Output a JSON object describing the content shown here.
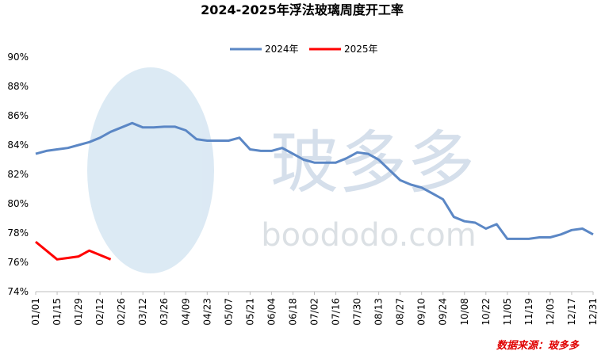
{
  "chart_data": {
    "type": "line",
    "title": "2024-2025年浮法玻璃周度开工率",
    "watermark": "玻多多",
    "watermark_url": "boododo.com",
    "source": "数据来源：玻多多",
    "categories": [
      "01/01",
      null,
      "01/15",
      null,
      "01/29",
      null,
      "02/12",
      null,
      "02/26",
      null,
      "03/12",
      null,
      "03/26",
      null,
      "04/09",
      null,
      "04/23",
      null,
      "05/07",
      null,
      "05/21",
      null,
      "06/04",
      null,
      "06/18",
      null,
      "07/02",
      null,
      "07/16",
      null,
      "07/30",
      null,
      "08/13",
      null,
      "08/27",
      null,
      "09/10",
      null,
      "09/24",
      null,
      "10/08",
      null,
      "10/22",
      null,
      "11/05",
      null,
      "11/19",
      null,
      "12/03",
      null,
      "12/17",
      null,
      "12/31"
    ],
    "series": [
      {
        "name": "2024年",
        "color": "#5b87c5",
        "values": [
          83.4,
          83.6,
          83.7,
          83.8,
          84.0,
          84.2,
          84.5,
          84.9,
          85.2,
          85.5,
          85.2,
          85.2,
          85.25,
          85.25,
          85.0,
          84.4,
          84.3,
          84.3,
          84.3,
          84.5,
          83.7,
          83.6,
          83.6,
          83.8,
          83.4,
          83.0,
          82.8,
          82.8,
          82.8,
          83.1,
          83.5,
          83.4,
          83.0,
          82.3,
          81.6,
          81.3,
          81.1,
          80.7,
          80.3,
          79.1,
          78.8,
          78.7,
          78.3,
          78.6,
          77.6,
          77.6,
          77.6,
          77.7,
          77.7,
          77.9,
          78.2,
          78.3,
          77.9
        ]
      },
      {
        "name": "2025年",
        "color": "#ff0000",
        "values": [
          77.4,
          76.8,
          76.2,
          76.3,
          76.4,
          76.8,
          76.5,
          76.2,
          null,
          null,
          null,
          null,
          null,
          null,
          null,
          null,
          null,
          null,
          null,
          null,
          null,
          null,
          null,
          null,
          null,
          null,
          null,
          null,
          null,
          null,
          null,
          null,
          null,
          null,
          null,
          null,
          null,
          null,
          null,
          null,
          null,
          null,
          null,
          null,
          null,
          null,
          null,
          null,
          null,
          null,
          null,
          null,
          null
        ]
      }
    ],
    "ylim": [
      74,
      90
    ],
    "yticks": [
      {
        "value": 74,
        "label": "74%"
      },
      {
        "value": 76,
        "label": "76%"
      },
      {
        "value": 78,
        "label": "78%"
      },
      {
        "value": 80,
        "label": "80%"
      },
      {
        "value": 82,
        "label": "82%"
      },
      {
        "value": 84,
        "label": "84%"
      },
      {
        "value": 86,
        "label": "86%"
      },
      {
        "value": 88,
        "label": "88%"
      },
      {
        "value": 90,
        "label": "90%"
      }
    ],
    "legend": "top"
  }
}
